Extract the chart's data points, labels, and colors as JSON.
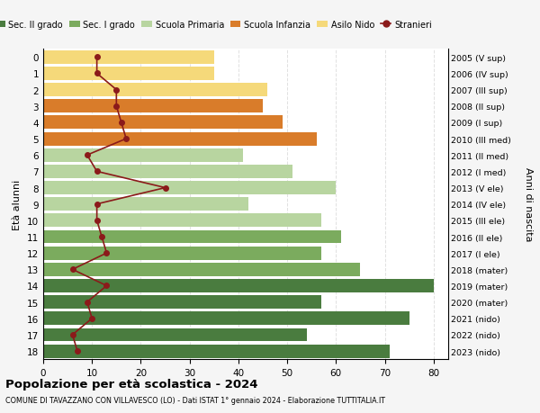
{
  "ages": [
    0,
    1,
    2,
    3,
    4,
    5,
    6,
    7,
    8,
    9,
    10,
    11,
    12,
    13,
    14,
    15,
    16,
    17,
    18
  ],
  "years": [
    "2023 (nido)",
    "2022 (nido)",
    "2021 (nido)",
    "2020 (mater)",
    "2019 (mater)",
    "2018 (mater)",
    "2017 (I ele)",
    "2016 (II ele)",
    "2015 (III ele)",
    "2014 (IV ele)",
    "2013 (V ele)",
    "2012 (I med)",
    "2011 (II med)",
    "2010 (III med)",
    "2009 (I sup)",
    "2008 (II sup)",
    "2007 (III sup)",
    "2006 (IV sup)",
    "2005 (V sup)"
  ],
  "bar_values": [
    35,
    35,
    46,
    45,
    49,
    56,
    41,
    51,
    60,
    42,
    57,
    61,
    57,
    65,
    80,
    57,
    75,
    54,
    71
  ],
  "bar_colors": [
    "#f5d97a",
    "#f5d97a",
    "#f5d97a",
    "#d97c2a",
    "#d97c2a",
    "#d97c2a",
    "#b8d5a0",
    "#b8d5a0",
    "#b8d5a0",
    "#b8d5a0",
    "#b8d5a0",
    "#7bab5e",
    "#7bab5e",
    "#7bab5e",
    "#4a7c3f",
    "#4a7c3f",
    "#4a7c3f",
    "#4a7c3f",
    "#4a7c3f"
  ],
  "stranieri_values": [
    11,
    11,
    15,
    15,
    16,
    17,
    9,
    11,
    25,
    11,
    11,
    12,
    13,
    6,
    13,
    9,
    10,
    6,
    7
  ],
  "stranieri_color": "#8b1a1a",
  "title": "Popolazione per età scolastica - 2024",
  "subtitle": "COMUNE DI TAVAZZANO CON VILLAVESCO (LO) - Dati ISTAT 1° gennaio 2024 - Elaborazione TUTTITALIA.IT",
  "ylabel_left": "Età alunni",
  "ylabel_right": "Anni di nascita",
  "xlim": [
    0,
    83
  ],
  "xticks": [
    0,
    10,
    20,
    30,
    40,
    50,
    60,
    70,
    80
  ],
  "legend_labels": [
    "Sec. II grado",
    "Sec. I grado",
    "Scuola Primaria",
    "Scuola Infanzia",
    "Asilo Nido",
    "Stranieri"
  ],
  "legend_colors": [
    "#4a7c3f",
    "#7bab5e",
    "#b8d5a0",
    "#d97c2a",
    "#f5d97a",
    "#8b1a1a"
  ],
  "bg_color": "#f5f5f5",
  "plot_bg_color": "#ffffff"
}
